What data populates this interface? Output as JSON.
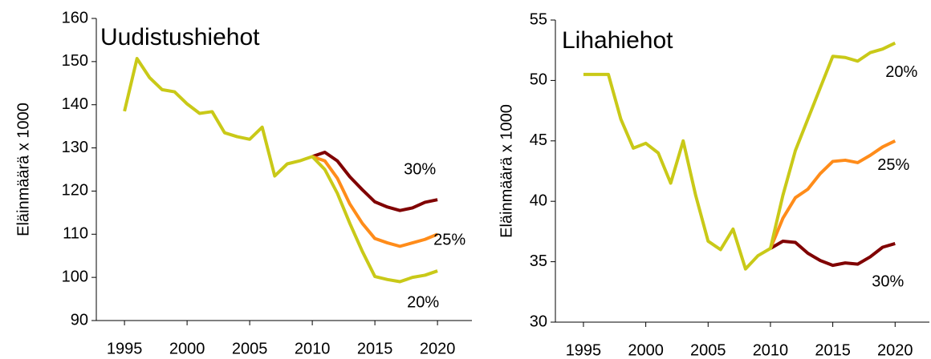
{
  "chart_data": [
    {
      "type": "line",
      "title": "Uudistushiehot",
      "y_label": "Eläinmäärä x 1000",
      "x": [
        1995,
        1996,
        1997,
        1998,
        1999,
        2000,
        2001,
        2002,
        2003,
        2004,
        2005,
        2006,
        2007,
        2008,
        2009,
        2010,
        2011,
        2012,
        2013,
        2014,
        2015,
        2016,
        2017,
        2018,
        2019,
        2020
      ],
      "xlim": [
        1992.75,
        2022.75
      ],
      "xticks": [
        1995,
        2000,
        2005,
        2010,
        2015,
        2020
      ],
      "ylim": [
        90,
        160
      ],
      "yticks": [
        90,
        100,
        110,
        120,
        130,
        140,
        150,
        160
      ],
      "series": [
        {
          "name": "30%",
          "color": "#800000",
          "values": [
            null,
            null,
            null,
            null,
            null,
            null,
            null,
            null,
            null,
            null,
            null,
            null,
            null,
            null,
            null,
            128,
            129,
            127,
            123.3,
            120.3,
            117.5,
            116.3,
            115.5,
            116.1,
            117.4,
            118
          ]
        },
        {
          "name": "25%",
          "color": "#ff8c1a",
          "values": [
            null,
            null,
            null,
            null,
            null,
            null,
            null,
            null,
            null,
            null,
            null,
            null,
            null,
            null,
            null,
            128,
            127,
            123,
            117,
            112.5,
            109,
            108,
            107.2,
            108,
            108.8,
            110
          ]
        },
        {
          "name": "20%",
          "color": "#c9c918",
          "values": [
            138.5,
            150.7,
            146.3,
            143.5,
            143,
            140.2,
            138,
            138.4,
            133.5,
            132.6,
            132,
            134.8,
            123.5,
            126.3,
            127,
            128,
            125,
            119.5,
            112.5,
            106,
            100.2,
            99.5,
            99,
            100,
            100.5,
            101.5
          ]
        }
      ]
    },
    {
      "type": "line",
      "title": "Lihahiehot",
      "y_label": "Eläinmäärä x 1000",
      "x": [
        1995,
        1996,
        1997,
        1998,
        1999,
        2000,
        2001,
        2002,
        2003,
        2004,
        2005,
        2006,
        2007,
        2008,
        2009,
        2010,
        2011,
        2012,
        2013,
        2014,
        2015,
        2016,
        2017,
        2018,
        2019,
        2020
      ],
      "xlim": [
        1992.75,
        2022.75
      ],
      "xticks": [
        1995,
        2000,
        2005,
        2010,
        2015,
        2020
      ],
      "ylim": [
        30,
        55
      ],
      "yticks": [
        30,
        35,
        40,
        45,
        50,
        55
      ],
      "series": [
        {
          "name": "30%",
          "color": "#800000",
          "values": [
            null,
            null,
            null,
            null,
            null,
            null,
            null,
            null,
            null,
            null,
            null,
            null,
            null,
            null,
            null,
            36.1,
            36.7,
            36.6,
            35.7,
            35.1,
            34.7,
            34.9,
            34.8,
            35.4,
            36.2,
            36.5
          ]
        },
        {
          "name": "25%",
          "color": "#ff8c1a",
          "values": [
            null,
            null,
            null,
            null,
            null,
            null,
            null,
            null,
            null,
            null,
            null,
            null,
            null,
            null,
            null,
            36.1,
            38.6,
            40.3,
            41,
            42.3,
            43.3,
            43.4,
            43.2,
            43.8,
            44.5,
            45
          ]
        },
        {
          "name": "20%",
          "color": "#c9c918",
          "values": [
            50.5,
            50.5,
            50.5,
            46.8,
            44.4,
            44.8,
            44,
            41.5,
            45,
            40.5,
            36.7,
            36,
            37.7,
            34.4,
            35.5,
            36.1,
            40.5,
            44.2,
            46.8,
            49.4,
            52,
            51.9,
            51.6,
            52.3,
            52.6,
            53.1
          ]
        }
      ]
    }
  ]
}
